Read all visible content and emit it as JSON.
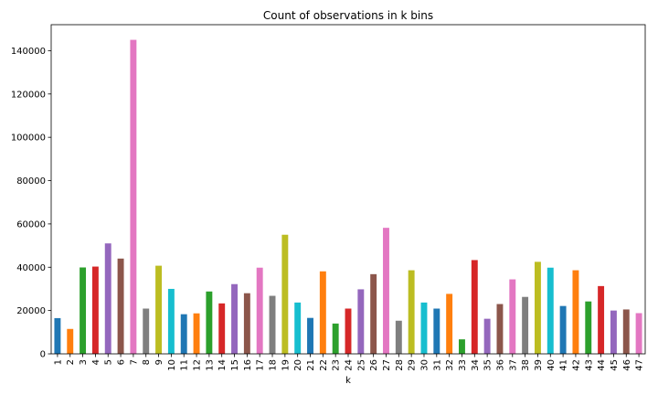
{
  "chart_data": {
    "type": "bar",
    "title": "Count of observations in k bins",
    "xlabel": "k",
    "ylabel": "",
    "ylim": [
      0,
      152000
    ],
    "yticks": [
      0,
      20000,
      40000,
      60000,
      80000,
      100000,
      120000,
      140000
    ],
    "grid": false,
    "legend": "none",
    "colors": [
      "#1f77b4",
      "#ff7f0e",
      "#2ca02c",
      "#d62728",
      "#9467bd",
      "#8c564b",
      "#e377c2",
      "#7f7f7f",
      "#bcbd22",
      "#17becf"
    ],
    "categories": [
      "1",
      "2",
      "3",
      "4",
      "5",
      "6",
      "7",
      "8",
      "9",
      "10",
      "11",
      "12",
      "13",
      "14",
      "15",
      "16",
      "17",
      "18",
      "19",
      "20",
      "21",
      "22",
      "23",
      "24",
      "25",
      "26",
      "27",
      "28",
      "29",
      "30",
      "31",
      "32",
      "33",
      "34",
      "35",
      "36",
      "37",
      "38",
      "39",
      "40",
      "41",
      "42",
      "43",
      "44",
      "45",
      "46",
      "47"
    ],
    "values": [
      16500,
      11500,
      39900,
      40300,
      51000,
      44000,
      145000,
      20900,
      40700,
      30000,
      18300,
      18700,
      28800,
      23300,
      32200,
      28000,
      39800,
      26800,
      55000,
      23700,
      16600,
      38100,
      14000,
      20900,
      29800,
      36800,
      58200,
      15300,
      38600,
      23700,
      20900,
      27700,
      6700,
      43300,
      16200,
      23000,
      34400,
      26300,
      42500,
      39800,
      22100,
      38600,
      24200,
      31300,
      20000,
      20500,
      18800
    ]
  }
}
